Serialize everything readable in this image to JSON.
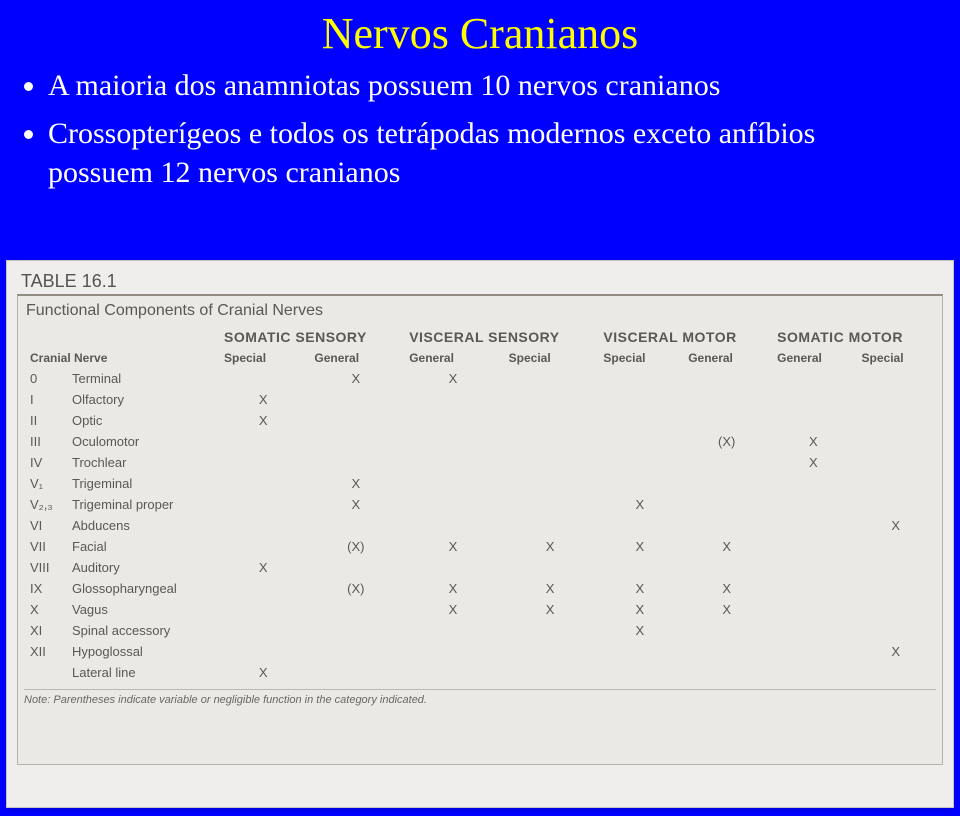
{
  "background_color": "#0000fe",
  "title": {
    "text": "Nervos Cranianos",
    "color": "#ffff00",
    "fontsize_pt": 33
  },
  "bullets": {
    "color": "#ffffff",
    "fontsize_pt": 22,
    "items": [
      "A maioria dos anamniotas possuem 10 nervos cranianos",
      "Crossopterígeos e todos os tetrápodas modernos exceto anfíbios possuem 12 nervos cranianos"
    ]
  },
  "table": {
    "label": "TABLE 16.1",
    "title": "Functional Components of Cranial Nerves",
    "row_header": "Cranial Nerve",
    "groups": [
      "SOMATIC SENSORY",
      "VISCERAL SENSORY",
      "VISCERAL MOTOR",
      "SOMATIC MOTOR"
    ],
    "subheaders": [
      "Special",
      "General",
      "General",
      "Special",
      "Special",
      "General",
      "General",
      "Special"
    ],
    "rows": [
      {
        "num": "0",
        "name": "Terminal",
        "cells": [
          "",
          "X",
          "X",
          "",
          "",
          "",
          "",
          ""
        ]
      },
      {
        "num": "I",
        "name": "Olfactory",
        "cells": [
          "X",
          "",
          "",
          "",
          "",
          "",
          "",
          ""
        ]
      },
      {
        "num": "II",
        "name": "Optic",
        "cells": [
          "X",
          "",
          "",
          "",
          "",
          "",
          "",
          ""
        ]
      },
      {
        "num": "III",
        "name": "Oculomotor",
        "cells": [
          "",
          "",
          "",
          "",
          "",
          "(X)",
          "X",
          ""
        ]
      },
      {
        "num": "IV",
        "name": "Trochlear",
        "cells": [
          "",
          "",
          "",
          "",
          "",
          "",
          "X",
          ""
        ]
      },
      {
        "num": "V₁",
        "name": "Trigeminal",
        "cells": [
          "",
          "X",
          "",
          "",
          "",
          "",
          "",
          ""
        ]
      },
      {
        "num": "V₂,₃",
        "name": "Trigeminal proper",
        "cells": [
          "",
          "X",
          "",
          "",
          "X",
          "",
          "",
          ""
        ]
      },
      {
        "num": "VI",
        "name": "Abducens",
        "cells": [
          "",
          "",
          "",
          "",
          "",
          "",
          "",
          "X"
        ]
      },
      {
        "num": "VII",
        "name": "Facial",
        "cells": [
          "",
          "(X)",
          "X",
          "X",
          "X",
          "X",
          "",
          ""
        ]
      },
      {
        "num": "VIII",
        "name": "Auditory",
        "cells": [
          "X",
          "",
          "",
          "",
          "",
          "",
          "",
          ""
        ]
      },
      {
        "num": "IX",
        "name": "Glossopharyngeal",
        "cells": [
          "",
          "(X)",
          "X",
          "X",
          "X",
          "X",
          "",
          ""
        ]
      },
      {
        "num": "X",
        "name": "Vagus",
        "cells": [
          "",
          "",
          "X",
          "X",
          "X",
          "X",
          "",
          ""
        ]
      },
      {
        "num": "XI",
        "name": "Spinal accessory",
        "cells": [
          "",
          "",
          "",
          "",
          "X",
          "",
          "",
          ""
        ]
      },
      {
        "num": "XII",
        "name": "Hypoglossal",
        "cells": [
          "",
          "",
          "",
          "",
          "",
          "",
          "",
          "X"
        ]
      },
      {
        "num": "",
        "name": "Lateral line",
        "cells": [
          "X",
          "",
          "",
          "",
          "",
          "",
          "",
          ""
        ]
      }
    ],
    "note": "Note: Parentheses indicate variable or negligible function in the category indicated.",
    "note_prefix": "Note:",
    "note_body": "Parentheses indicate variable or negligible function in the category indicated.",
    "styling": {
      "paper_bg": "#f5f3f0",
      "block_bg": "#f3f1ed",
      "border_color": "#b8b2a9",
      "top_border_color": "#8c877e",
      "group_fontsize_pt": 10.5,
      "sub_fontsize_pt": 9,
      "cell_fontsize_pt": 10,
      "note_fontsize_pt": 8.5,
      "text_color": "#4a4743"
    }
  }
}
